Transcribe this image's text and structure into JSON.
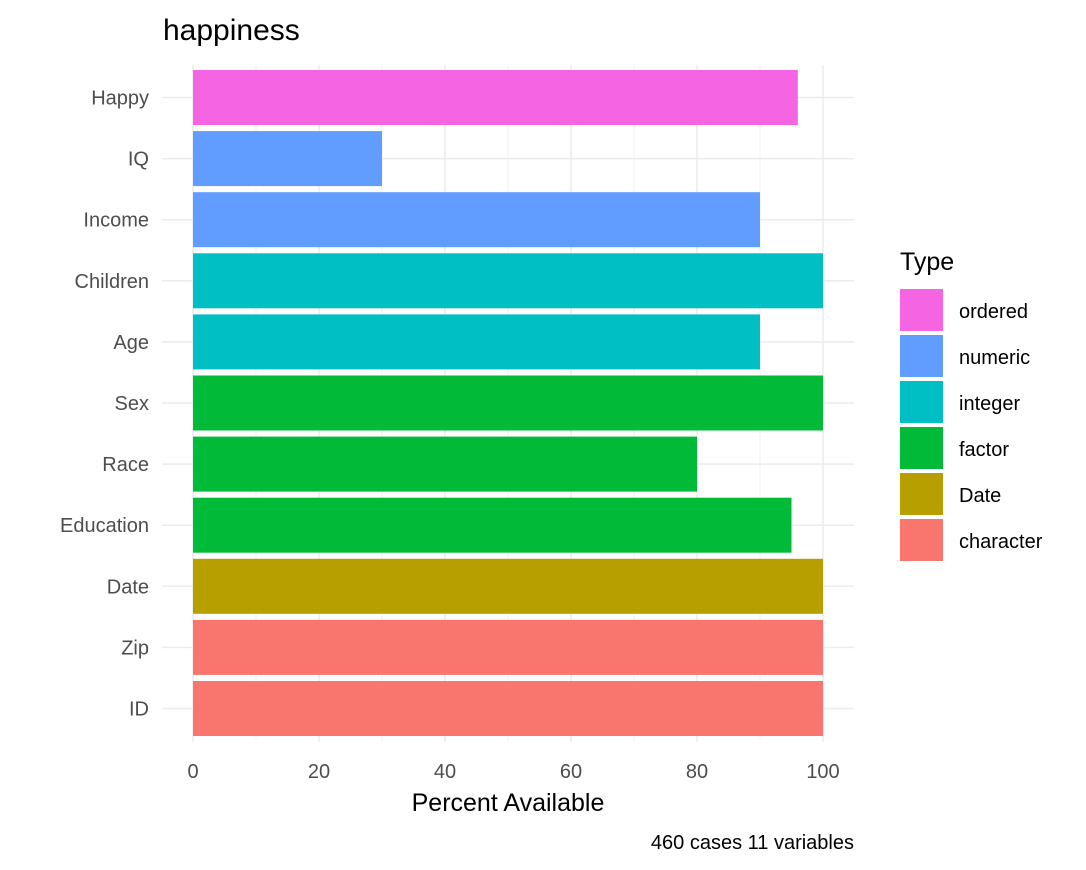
{
  "chart_data": {
    "type": "bar",
    "orientation": "horizontal",
    "title": "happiness",
    "xlabel": "Percent Available",
    "ylabel": "",
    "caption": "460 cases 11 variables",
    "xlim": [
      0,
      100
    ],
    "xticks": [
      0,
      20,
      40,
      60,
      80,
      100
    ],
    "grid": true,
    "legend": {
      "title": "Type",
      "position": "right"
    },
    "types": [
      {
        "name": "ordered",
        "color": "#F564E3"
      },
      {
        "name": "numeric",
        "color": "#619CFF"
      },
      {
        "name": "integer",
        "color": "#00BFC4"
      },
      {
        "name": "factor",
        "color": "#00BA38"
      },
      {
        "name": "Date",
        "color": "#B79F00"
      },
      {
        "name": "character",
        "color": "#F8766D"
      }
    ],
    "categories": [
      "Happy",
      "IQ",
      "Income",
      "Children",
      "Age",
      "Sex",
      "Race",
      "Education",
      "Date",
      "Zip",
      "ID"
    ],
    "values": [
      96,
      30,
      90,
      100,
      90,
      100,
      80,
      95,
      100,
      100,
      100
    ],
    "bar_types": [
      "ordered",
      "numeric",
      "numeric",
      "integer",
      "integer",
      "factor",
      "factor",
      "factor",
      "Date",
      "character",
      "character"
    ]
  }
}
